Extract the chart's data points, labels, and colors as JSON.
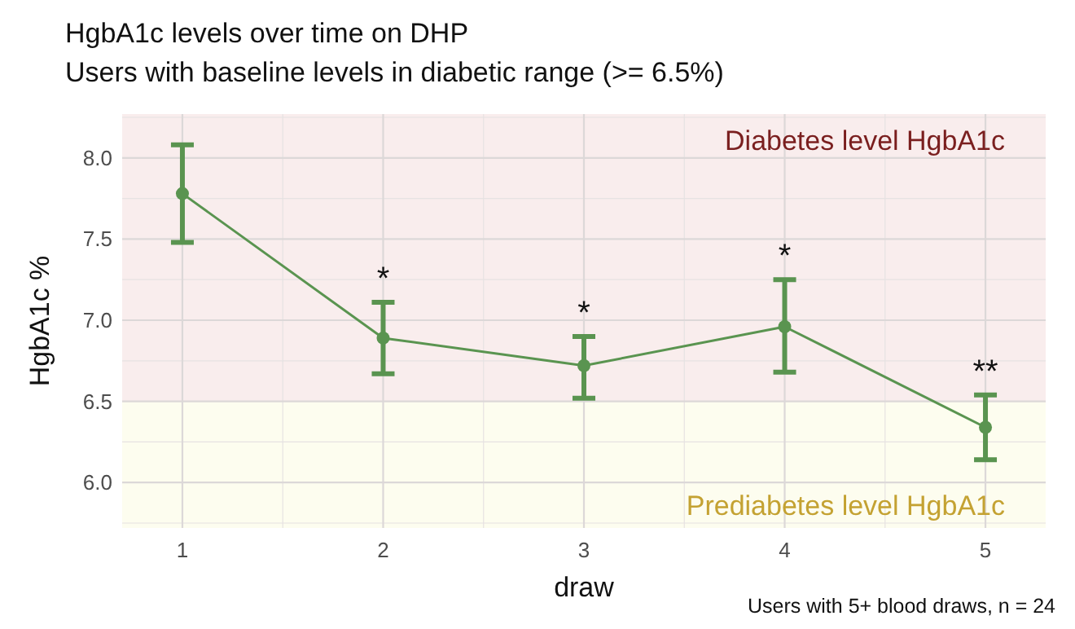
{
  "chart_data": {
    "type": "line",
    "title": "HgbA1c levels over time on DHP",
    "subtitle": "Users with baseline levels in diabetic range (>= 6.5%)",
    "xlabel": "draw",
    "ylabel": "HgbA1c %",
    "categories": [
      "1",
      "2",
      "3",
      "4",
      "5"
    ],
    "series": [
      {
        "color": "#5a9450",
        "values": [
          7.78,
          6.89,
          6.72,
          6.96,
          6.34
        ],
        "errors": [
          [
            7.48,
            8.08
          ],
          [
            6.67,
            7.11
          ],
          [
            6.52,
            6.9
          ],
          [
            6.68,
            7.25
          ],
          [
            6.14,
            6.54
          ]
        ]
      }
    ],
    "ylim": [
      5.72,
      8.27
    ],
    "yticks": [
      {
        "value": 6,
        "label": "6.0"
      },
      6.5,
      {
        "value": 7,
        "label": "7.0"
      },
      7.5,
      {
        "value": 8,
        "label": "8.0"
      }
    ],
    "grid": true,
    "marker": "circle",
    "line_style": "solid",
    "bands": [
      {
        "axis": "y",
        "from": 6.5,
        "to": 8.27,
        "label": "Diabetes level HgbA1c",
        "color": "#f9eded"
      },
      {
        "axis": "y",
        "from": 5.72,
        "to": 6.5,
        "label": "Prediabetes level HgbA1c",
        "color": "#fdfdef"
      }
    ],
    "annotations": [
      "*",
      "*",
      "*",
      "**",
      "Users with 5+ blood draws, n = 24"
    ]
  }
}
